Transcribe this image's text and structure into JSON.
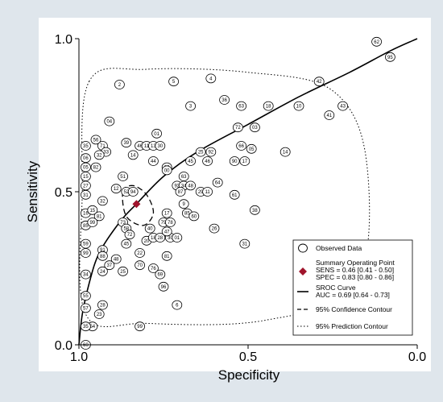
{
  "chart_data": {
    "type": "scatter",
    "title": "",
    "xlabel": "Specificity",
    "ylabel": "Sensitivity",
    "x_reversed": true,
    "xlim": [
      1.0,
      0.0
    ],
    "ylim": [
      0.0,
      1.0
    ],
    "x_ticks": [
      "1.0",
      "0.5",
      "0.0"
    ],
    "y_ticks": [
      "0.0",
      "0.5",
      "1.0"
    ],
    "grid": false,
    "legend": {
      "placement": "bottom-right",
      "observed": "Observed Data",
      "summary_title": "Summary Operating Point",
      "summary_sens": "SENS = 0.46 [0.41 - 0.50]",
      "summary_spec": "SPEC = 0.83 [0.80 - 0.86]",
      "sroc_title": "SROC Curve",
      "sroc_auc": "AUC = 0.69 [0.64 - 0.73]",
      "confidence": "95% Confidence Contour",
      "prediction": "95% Prediction Contour"
    },
    "colors": {
      "summary_point": "#a0142c",
      "background": "#dfe6ec",
      "plot": "#ffffff"
    },
    "summary_point": {
      "specificity": 0.83,
      "sensitivity": 0.46
    },
    "sroc_curve": [
      [
        1.0,
        0.0
      ],
      [
        0.99,
        0.1
      ],
      [
        0.97,
        0.2
      ],
      [
        0.94,
        0.3
      ],
      [
        0.88,
        0.4
      ],
      [
        0.83,
        0.46
      ],
      [
        0.75,
        0.55
      ],
      [
        0.65,
        0.63
      ],
      [
        0.5,
        0.72
      ],
      [
        0.35,
        0.81
      ],
      [
        0.2,
        0.89
      ],
      [
        0.08,
        0.96
      ],
      [
        0.0,
        1.0
      ]
    ],
    "confidence_contour": [
      [
        0.87,
        0.5
      ],
      [
        0.84,
        0.52
      ],
      [
        0.8,
        0.49
      ],
      [
        0.78,
        0.43
      ],
      [
        0.81,
        0.39
      ],
      [
        0.86,
        0.42
      ],
      [
        0.87,
        0.5
      ]
    ],
    "prediction_contour": [
      [
        0.97,
        0.86
      ],
      [
        0.8,
        0.9
      ],
      [
        0.5,
        0.89
      ],
      [
        0.25,
        0.83
      ],
      [
        0.15,
        0.6
      ],
      [
        0.18,
        0.2
      ],
      [
        0.45,
        0.08
      ],
      [
        0.8,
        0.07
      ],
      [
        0.98,
        0.1
      ],
      [
        0.99,
        0.5
      ],
      [
        0.97,
        0.86
      ]
    ],
    "points": [
      {
        "label": "62",
        "spec": 0.12,
        "sens": 0.99
      },
      {
        "label": "95",
        "spec": 0.08,
        "sens": 0.94
      },
      {
        "label": "42",
        "spec": 0.29,
        "sens": 0.86
      },
      {
        "label": "4",
        "spec": 0.61,
        "sens": 0.87
      },
      {
        "label": "5",
        "spec": 0.72,
        "sens": 0.86
      },
      {
        "label": "2",
        "spec": 0.88,
        "sens": 0.85
      },
      {
        "label": "36",
        "spec": 0.57,
        "sens": 0.8
      },
      {
        "label": "3",
        "spec": 0.67,
        "sens": 0.78
      },
      {
        "label": "63",
        "spec": 0.52,
        "sens": 0.78
      },
      {
        "label": "18",
        "spec": 0.44,
        "sens": 0.78
      },
      {
        "label": "10",
        "spec": 0.35,
        "sens": 0.78
      },
      {
        "label": "43",
        "spec": 0.22,
        "sens": 0.78
      },
      {
        "label": "41",
        "spec": 0.26,
        "sens": 0.75
      },
      {
        "label": "04",
        "spec": 0.91,
        "sens": 0.73
      },
      {
        "label": "72",
        "spec": 0.53,
        "sens": 0.71
      },
      {
        "label": "03",
        "spec": 0.48,
        "sens": 0.71
      },
      {
        "label": "01",
        "spec": 0.77,
        "sens": 0.69
      },
      {
        "label": "35",
        "spec": 0.98,
        "sens": 0.65
      },
      {
        "label": "06",
        "spec": 0.98,
        "sens": 0.61
      },
      {
        "label": "05",
        "spec": 0.98,
        "sens": 0.58
      },
      {
        "label": "15",
        "spec": 0.98,
        "sens": 0.55
      },
      {
        "label": "27",
        "spec": 0.98,
        "sens": 0.52
      },
      {
        "label": "31",
        "spec": 0.98,
        "sens": 0.49
      },
      {
        "label": "16",
        "spec": 0.98,
        "sens": 0.43
      },
      {
        "label": "85",
        "spec": 0.98,
        "sens": 0.39
      },
      {
        "label": "59",
        "spec": 0.98,
        "sens": 0.33
      },
      {
        "label": "99",
        "spec": 0.98,
        "sens": 0.3
      },
      {
        "label": "34",
        "spec": 0.98,
        "sens": 0.23
      },
      {
        "label": "55",
        "spec": 0.98,
        "sens": 0.16
      },
      {
        "label": "57",
        "spec": 0.98,
        "sens": 0.12
      },
      {
        "label": "60",
        "spec": 0.98,
        "sens": 0.0
      },
      {
        "label": "56",
        "spec": 0.95,
        "sens": 0.67
      },
      {
        "label": "71",
        "spec": 0.93,
        "sens": 0.65
      },
      {
        "label": "33",
        "spec": 0.92,
        "sens": 0.63
      },
      {
        "label": "39",
        "spec": 0.86,
        "sens": 0.66
      },
      {
        "label": "46",
        "spec": 0.82,
        "sens": 0.65
      },
      {
        "label": "11",
        "spec": 0.8,
        "sens": 0.65
      },
      {
        "label": "13",
        "spec": 0.78,
        "sens": 0.65
      },
      {
        "label": "30",
        "spec": 0.76,
        "sens": 0.65
      },
      {
        "label": "44",
        "spec": 0.78,
        "sens": 0.6
      },
      {
        "label": "26",
        "spec": 0.74,
        "sens": 0.58
      },
      {
        "label": "14",
        "spec": 0.84,
        "sens": 0.62
      },
      {
        "label": "32",
        "spec": 0.94,
        "sens": 0.62
      },
      {
        "label": "82",
        "spec": 0.95,
        "sens": 0.58
      },
      {
        "label": "51",
        "spec": 0.87,
        "sens": 0.55
      },
      {
        "label": "12",
        "spec": 0.89,
        "sens": 0.51
      },
      {
        "label": "52",
        "spec": 0.86,
        "sens": 0.5
      },
      {
        "label": "94",
        "spec": 0.84,
        "sens": 0.5
      },
      {
        "label": "32",
        "spec": 0.93,
        "sens": 0.47
      },
      {
        "label": "15",
        "spec": 0.96,
        "sens": 0.44
      },
      {
        "label": "81",
        "spec": 0.94,
        "sens": 0.42
      },
      {
        "label": "99",
        "spec": 0.96,
        "sens": 0.4
      },
      {
        "label": "73",
        "spec": 0.87,
        "sens": 0.4
      },
      {
        "label": "58",
        "spec": 0.86,
        "sens": 0.38
      },
      {
        "label": "72",
        "spec": 0.85,
        "sens": 0.36
      },
      {
        "label": "45",
        "spec": 0.86,
        "sens": 0.33
      },
      {
        "label": "91",
        "spec": 0.93,
        "sens": 0.31
      },
      {
        "label": "88",
        "spec": 0.93,
        "sens": 0.29
      },
      {
        "label": "48",
        "spec": 0.89,
        "sens": 0.28
      },
      {
        "label": "37",
        "spec": 0.91,
        "sens": 0.26
      },
      {
        "label": "24",
        "spec": 0.93,
        "sens": 0.24
      },
      {
        "label": "25",
        "spec": 0.87,
        "sens": 0.24
      },
      {
        "label": "70",
        "spec": 0.82,
        "sens": 0.26
      },
      {
        "label": "76",
        "spec": 0.78,
        "sens": 0.25
      },
      {
        "label": "69",
        "spec": 0.76,
        "sens": 0.23
      },
      {
        "label": "22",
        "spec": 0.82,
        "sens": 0.3
      },
      {
        "label": "20",
        "spec": 0.8,
        "sens": 0.34
      },
      {
        "label": "40",
        "spec": 0.79,
        "sens": 0.38
      },
      {
        "label": "18",
        "spec": 0.78,
        "sens": 0.35
      },
      {
        "label": "28",
        "spec": 0.76,
        "sens": 0.35
      },
      {
        "label": "30",
        "spec": 0.73,
        "sens": 0.35
      },
      {
        "label": "01",
        "spec": 0.71,
        "sens": 0.35
      },
      {
        "label": "17",
        "spec": 0.74,
        "sens": 0.43
      },
      {
        "label": "79",
        "spec": 0.75,
        "sens": 0.4
      },
      {
        "label": "78",
        "spec": 0.73,
        "sens": 0.4
      },
      {
        "label": "47",
        "spec": 0.74,
        "sens": 0.37
      },
      {
        "label": "9",
        "spec": 0.69,
        "sens": 0.46
      },
      {
        "label": "85",
        "spec": 0.68,
        "sens": 0.43
      },
      {
        "label": "60",
        "spec": 0.66,
        "sens": 0.42
      },
      {
        "label": "93",
        "spec": 0.71,
        "sens": 0.52
      },
      {
        "label": "34",
        "spec": 0.69,
        "sens": 0.52
      },
      {
        "label": "48",
        "spec": 0.67,
        "sens": 0.52
      },
      {
        "label": "87",
        "spec": 0.7,
        "sens": 0.5
      },
      {
        "label": "29",
        "spec": 0.64,
        "sens": 0.5
      },
      {
        "label": "11",
        "spec": 0.62,
        "sens": 0.5
      },
      {
        "label": "64",
        "spec": 0.59,
        "sens": 0.53
      },
      {
        "label": "61",
        "spec": 0.54,
        "sens": 0.49
      },
      {
        "label": "38",
        "spec": 0.48,
        "sens": 0.44
      },
      {
        "label": "63",
        "spec": 0.69,
        "sens": 0.55
      },
      {
        "label": "45",
        "spec": 0.67,
        "sens": 0.6
      },
      {
        "label": "46",
        "spec": 0.62,
        "sens": 0.6
      },
      {
        "label": "25",
        "spec": 0.64,
        "sens": 0.63
      },
      {
        "label": "92",
        "spec": 0.61,
        "sens": 0.63
      },
      {
        "label": "00",
        "spec": 0.74,
        "sens": 0.57
      },
      {
        "label": "90",
        "spec": 0.54,
        "sens": 0.6
      },
      {
        "label": "17",
        "spec": 0.51,
        "sens": 0.6
      },
      {
        "label": "66",
        "spec": 0.52,
        "sens": 0.65
      },
      {
        "label": "05",
        "spec": 0.49,
        "sens": 0.64
      },
      {
        "label": "14",
        "spec": 0.39,
        "sens": 0.63
      },
      {
        "label": "26",
        "spec": 0.6,
        "sens": 0.38
      },
      {
        "label": "31",
        "spec": 0.51,
        "sens": 0.33
      },
      {
        "label": "81",
        "spec": 0.74,
        "sens": 0.29
      },
      {
        "label": "6",
        "spec": 0.71,
        "sens": 0.13
      },
      {
        "label": "96",
        "spec": 0.75,
        "sens": 0.19
      },
      {
        "label": "23",
        "spec": 0.94,
        "sens": 0.1
      },
      {
        "label": "28",
        "spec": 0.93,
        "sens": 0.13
      },
      {
        "label": "54",
        "spec": 0.96,
        "sens": 0.06
      },
      {
        "label": "35",
        "spec": 0.98,
        "sens": 0.06
      },
      {
        "label": "99",
        "spec": 0.82,
        "sens": 0.06
      }
    ]
  }
}
